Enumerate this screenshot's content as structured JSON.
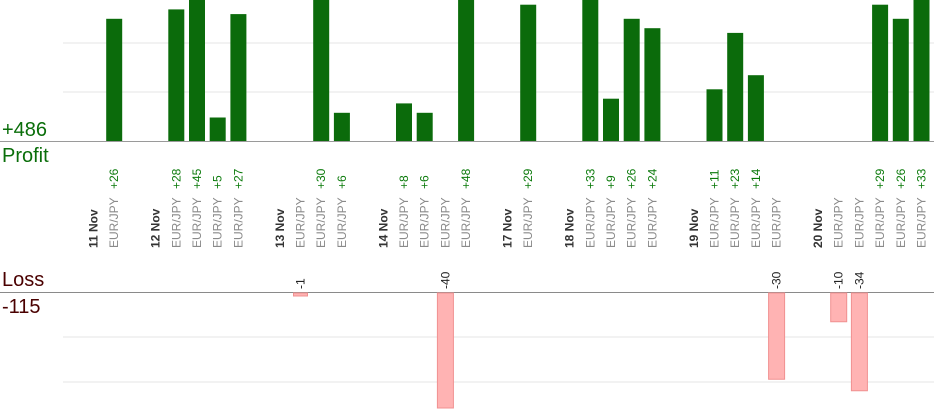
{
  "summary": {
    "profit_total": "+486",
    "profit_label": "Profit",
    "loss_label": "Loss",
    "loss_total": "-115"
  },
  "colors": {
    "profit_bar": "#0b6b0b",
    "profit_text": "#0a7a0a",
    "loss_bar": "#ffb3b3",
    "loss_text": "#4a0000",
    "date_text": "#333333",
    "pair_text": "#8a8a8a",
    "grid": "#e6e6e6"
  },
  "chart_data": {
    "type": "bar",
    "profit_scale_max": 30,
    "loss_scale_max": 40,
    "columns": [
      {
        "date": "11 Nov"
      },
      {
        "pair": "EUR/JPY",
        "value": 26,
        "label": "+26"
      },
      {
        "spacer": true
      },
      {
        "date": "12 Nov"
      },
      {
        "pair": "EUR/JPY",
        "value": 28,
        "label": "+28"
      },
      {
        "pair": "EUR/JPY",
        "value": 45,
        "label": "+45"
      },
      {
        "pair": "EUR/JPY",
        "value": 5,
        "label": "+5"
      },
      {
        "pair": "EUR/JPY",
        "value": 27,
        "label": "+27"
      },
      {
        "spacer": true
      },
      {
        "date": "13 Nov"
      },
      {
        "pair": "EUR/JPY",
        "value": -1,
        "label": "-1"
      },
      {
        "pair": "EUR/JPY",
        "value": 30,
        "label": "+30"
      },
      {
        "pair": "EUR/JPY",
        "value": 6,
        "label": "+6"
      },
      {
        "spacer": true
      },
      {
        "date": "14 Nov"
      },
      {
        "pair": "EUR/JPY",
        "value": 8,
        "label": "+8"
      },
      {
        "pair": "EUR/JPY",
        "value": 6,
        "label": "+6"
      },
      {
        "pair": "EUR/JPY",
        "value": -40,
        "label": "-40"
      },
      {
        "pair": "EUR/JPY",
        "value": 48,
        "label": "+48"
      },
      {
        "spacer": true
      },
      {
        "date": "17 Nov"
      },
      {
        "pair": "EUR/JPY",
        "value": 29,
        "label": "+29"
      },
      {
        "spacer": true
      },
      {
        "date": "18 Nov"
      },
      {
        "pair": "EUR/JPY",
        "value": 33,
        "label": "+33"
      },
      {
        "pair": "EUR/JPY",
        "value": 9,
        "label": "+9"
      },
      {
        "pair": "EUR/JPY",
        "value": 26,
        "label": "+26"
      },
      {
        "pair": "EUR/JPY",
        "value": 24,
        "label": "+24"
      },
      {
        "spacer": true
      },
      {
        "date": "19 Nov"
      },
      {
        "pair": "EUR/JPY",
        "value": 11,
        "label": "+11"
      },
      {
        "pair": "EUR/JPY",
        "value": 23,
        "label": "+23"
      },
      {
        "pair": "EUR/JPY",
        "value": 14,
        "label": "+14"
      },
      {
        "pair": "EUR/JPY",
        "value": -30,
        "label": "-30"
      },
      {
        "spacer": true
      },
      {
        "date": "20 Nov"
      },
      {
        "pair": "EUR/JPY",
        "value": -10,
        "label": "-10"
      },
      {
        "pair": "EUR/JPY",
        "value": -34,
        "label": "-34"
      },
      {
        "pair": "EUR/JPY",
        "value": 29,
        "label": "+29"
      },
      {
        "pair": "EUR/JPY",
        "value": 26,
        "label": "+26"
      },
      {
        "pair": "EUR/JPY",
        "value": 33,
        "label": "+33"
      }
    ]
  }
}
